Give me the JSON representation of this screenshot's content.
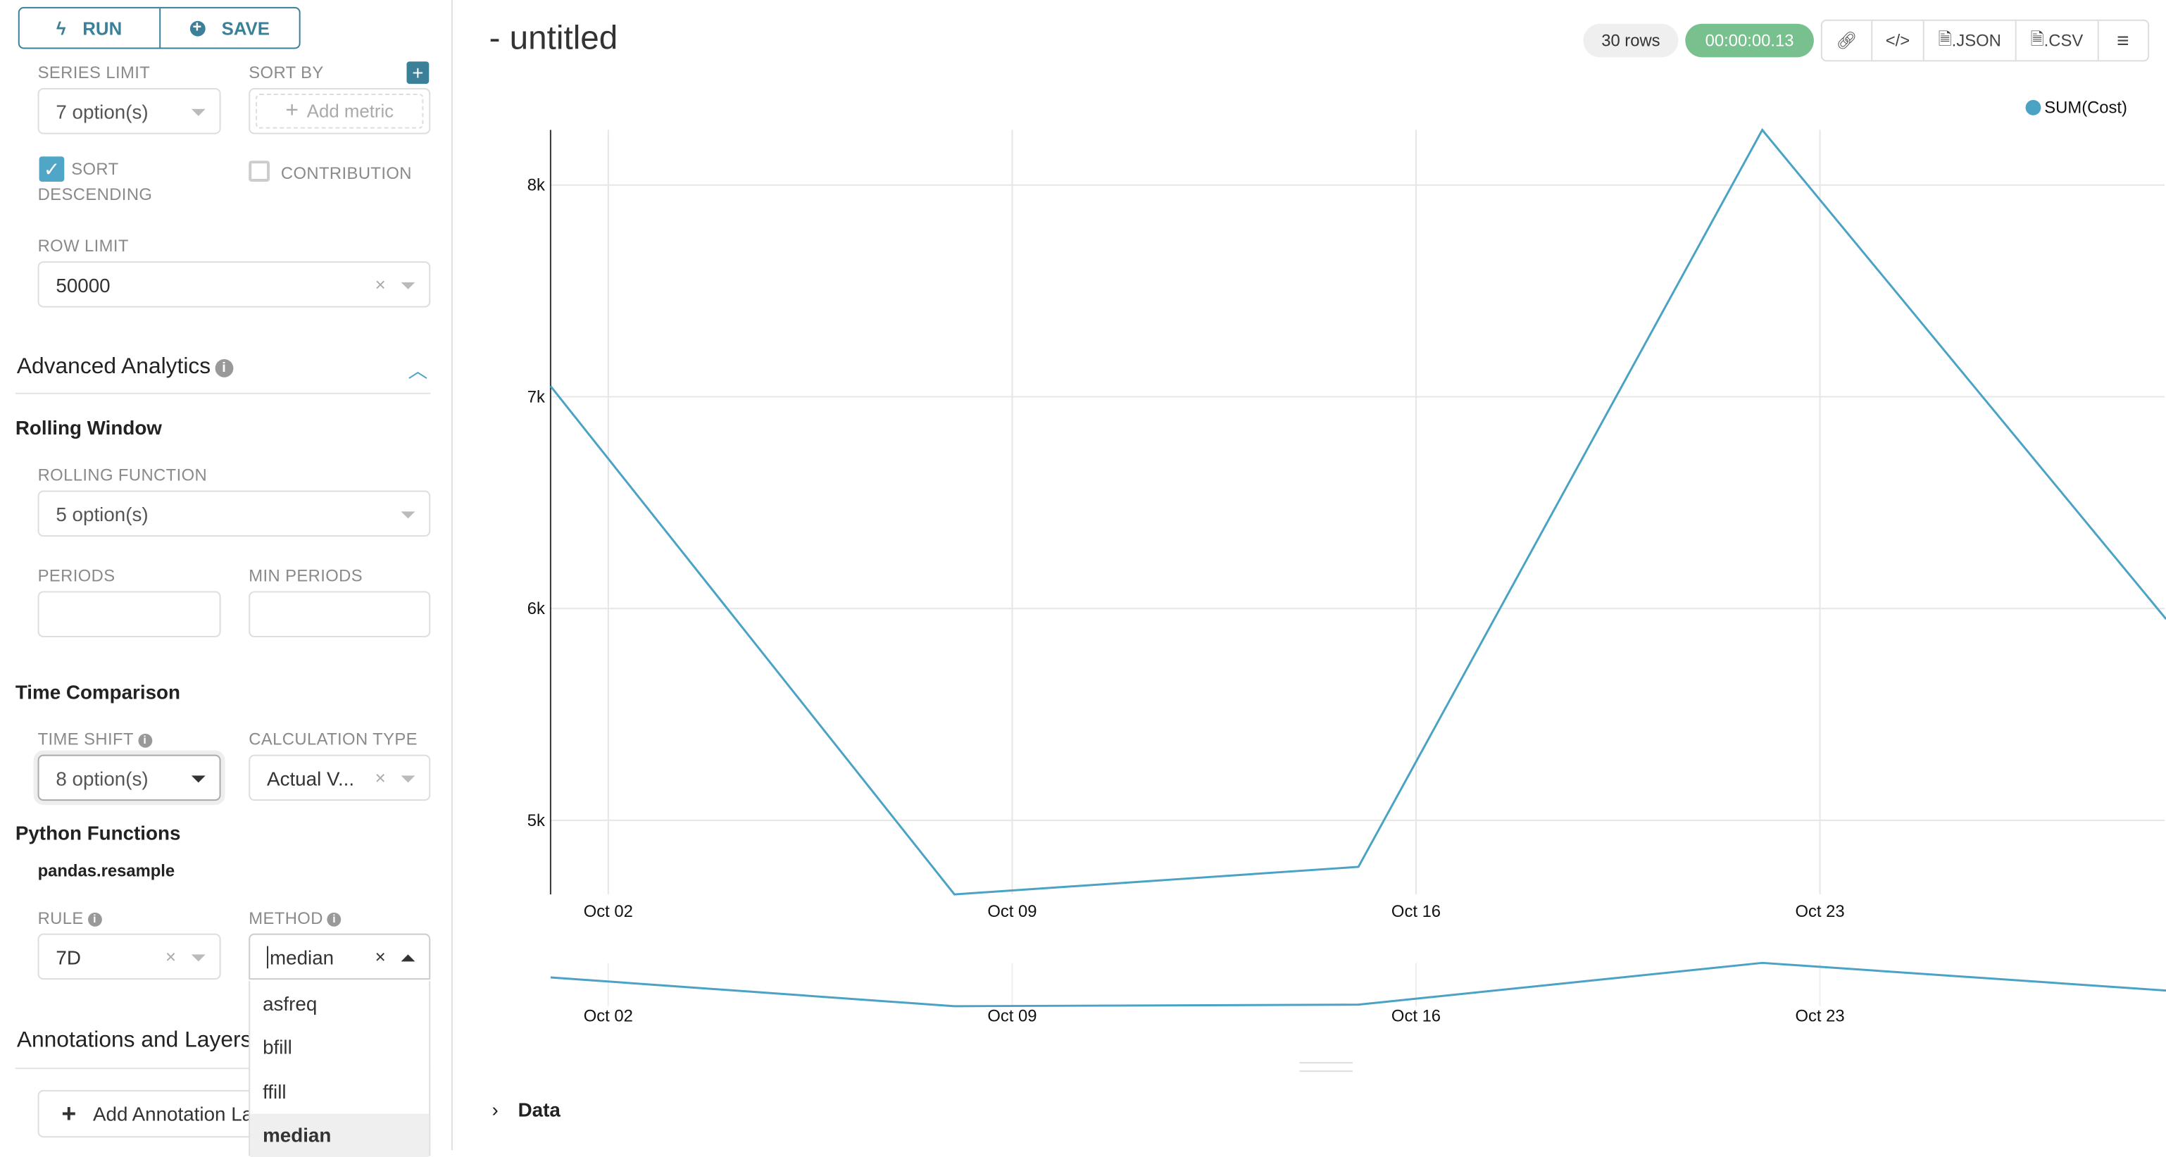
{
  "sidebar": {
    "run_label": "RUN",
    "save_label": "SAVE",
    "series_limit": {
      "label": "SERIES LIMIT",
      "value": "7 option(s)"
    },
    "sort_by": {
      "label": "SORT BY",
      "placeholder": "Add metric"
    },
    "sort_descending": {
      "label_line1": "SORT",
      "label_line2": "DESCENDING",
      "checked": true
    },
    "contribution": {
      "label": "CONTRIBUTION",
      "checked": false
    },
    "row_limit": {
      "label": "ROW LIMIT",
      "value": "50000"
    },
    "advanced_analytics": {
      "title": "Advanced Analytics",
      "expanded": true
    },
    "rolling_window": {
      "title": "Rolling Window",
      "function_label": "ROLLING FUNCTION",
      "function_value": "5 option(s)",
      "periods_label": "PERIODS",
      "periods_value": "",
      "min_periods_label": "MIN PERIODS",
      "min_periods_value": ""
    },
    "time_comparison": {
      "title": "Time Comparison",
      "time_shift_label": "TIME SHIFT",
      "time_shift_value": "8 option(s)",
      "calc_type_label": "CALCULATION TYPE",
      "calc_type_value": "Actual V..."
    },
    "python_functions": {
      "title": "Python Functions",
      "subtitle": "pandas.resample",
      "rule_label": "RULE",
      "rule_value": "7D",
      "method_label": "METHOD",
      "method_value": "median",
      "method_options": [
        "asfreq",
        "bfill",
        "ffill",
        "median"
      ],
      "method_selected": "median"
    },
    "annotations": {
      "title": "Annotations and Layers",
      "add_button": "Add Annotation Layer"
    }
  },
  "header": {
    "title": "- untitled",
    "rows_badge": "30 rows",
    "timer": "00:00:00.13",
    "json_label": ".JSON",
    "csv_label": ".CSV",
    "timer_color": "#78c08e"
  },
  "data_section": {
    "label": "Data"
  },
  "chart_data": {
    "type": "line",
    "x": [
      "Oct 01",
      "Oct 08",
      "Oct 15",
      "Oct 22",
      "Oct 29"
    ],
    "series": [
      {
        "name": "SUM(Cost)",
        "values": [
          7050,
          4650,
          4780,
          8260,
          5950
        ],
        "color": "#4aa3c4"
      }
    ],
    "xticks": [
      "Oct 02",
      "Oct 09",
      "Oct 16",
      "Oct 23"
    ],
    "yticks": [
      "5k",
      "6k",
      "7k",
      "8k"
    ],
    "ytick_values": [
      5000,
      6000,
      7000,
      8000
    ],
    "ylim": [
      4650,
      8260
    ],
    "grid": true,
    "legend": "top-right",
    "brush_preview": true
  }
}
